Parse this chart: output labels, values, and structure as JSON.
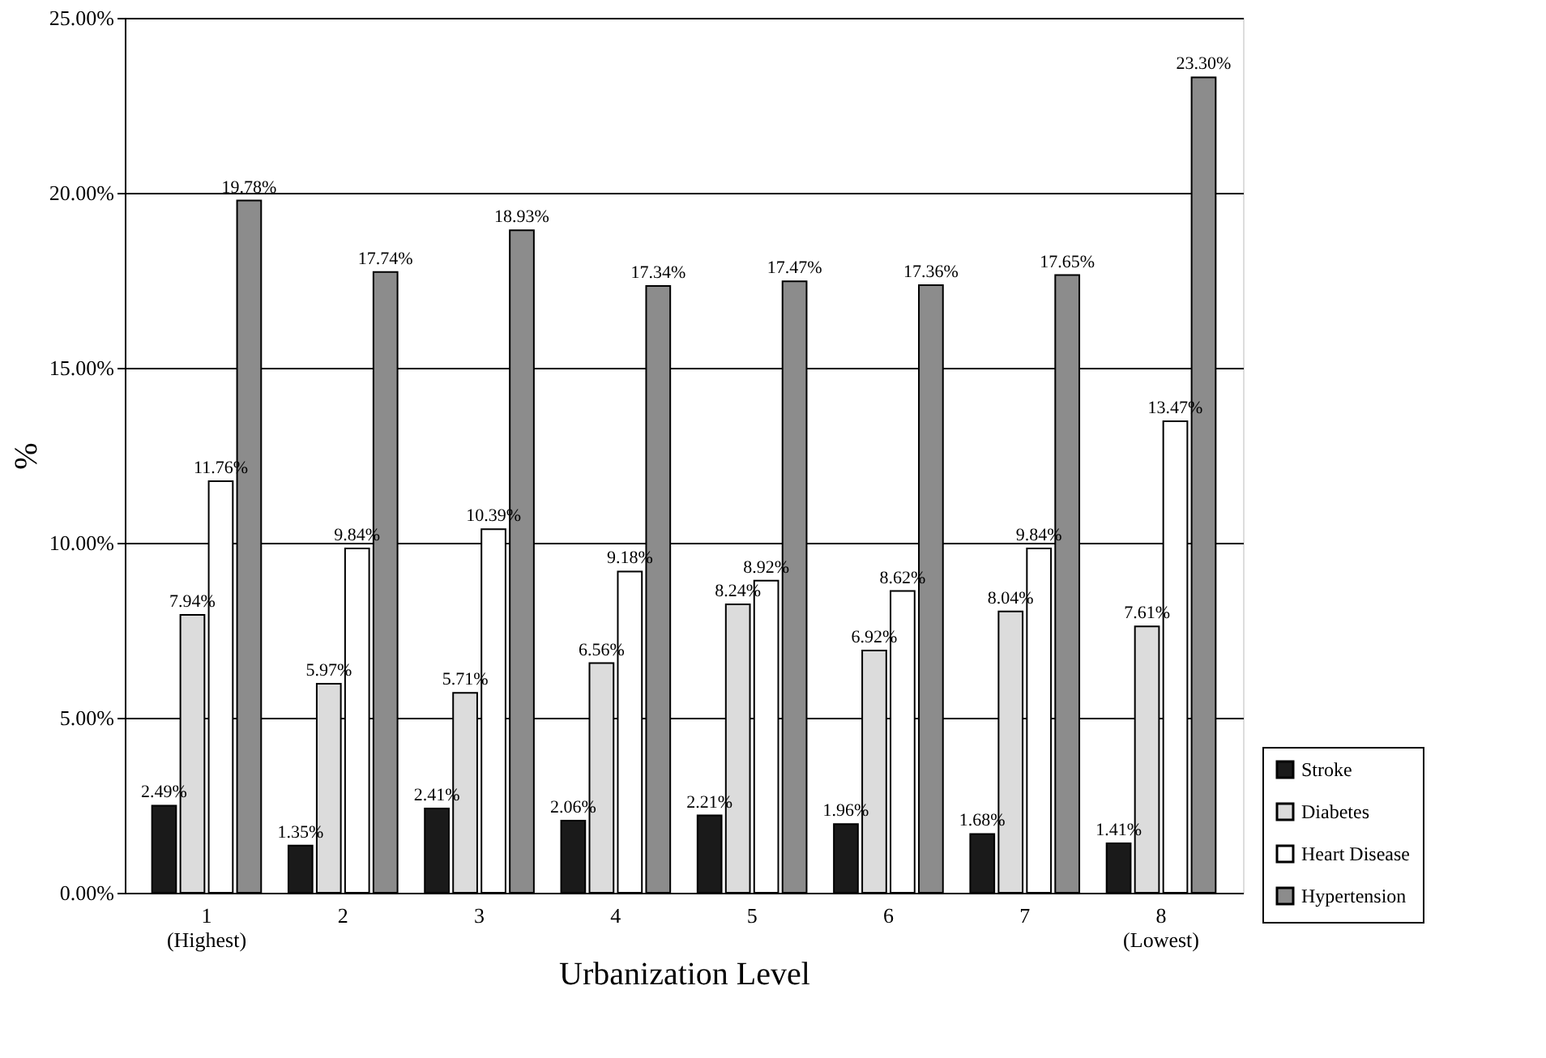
{
  "chart_data": {
    "type": "bar",
    "xlabel": "Urbanization Level",
    "ylabel": "%",
    "categories": [
      "1\n(Highest)",
      "2",
      "3",
      "4",
      "5",
      "6",
      "7",
      "8\n(Lowest)"
    ],
    "series": [
      {
        "name": "Stroke",
        "color": "#1a1a1a",
        "values": [
          2.49,
          1.35,
          2.41,
          2.06,
          2.21,
          1.96,
          1.68,
          1.41
        ],
        "value_labels": [
          "2.49%",
          "1.35%",
          "2.41%",
          "2.06%",
          "2.21%",
          "1.96%",
          "1.68%",
          "1.41%"
        ]
      },
      {
        "name": "Diabetes",
        "color": "#dcdcdc",
        "values": [
          7.94,
          5.97,
          5.71,
          6.56,
          8.24,
          6.92,
          8.04,
          7.61
        ],
        "value_labels": [
          "7.94%",
          "5.97%",
          "5.71%",
          "6.56%",
          "8.24%",
          "6.92%",
          "8.04%",
          "7.61%"
        ]
      },
      {
        "name": "Heart Disease",
        "color": "#ffffff",
        "values": [
          11.76,
          9.84,
          10.39,
          9.18,
          8.92,
          8.62,
          9.84,
          13.47
        ],
        "value_labels": [
          "11.76%",
          "9.84%",
          "10.39%",
          "9.18%",
          "8.92%",
          "8.62%",
          "9.84%",
          "13.47%"
        ]
      },
      {
        "name": "Hypertension",
        "color": "#8c8c8c",
        "values": [
          19.78,
          17.74,
          18.93,
          17.34,
          17.47,
          17.36,
          17.65,
          23.3
        ],
        "value_labels": [
          "19.78%",
          "17.74%",
          "18.93%",
          "17.34%",
          "17.47%",
          "17.36%",
          "17.65%",
          "23.30%"
        ]
      }
    ],
    "ylim": [
      0,
      25
    ],
    "yticks": [
      {
        "value": 0,
        "label": "0.00%"
      },
      {
        "value": 5,
        "label": "5.00%"
      },
      {
        "value": 10,
        "label": "10.00%"
      },
      {
        "value": 15,
        "label": "15.00%"
      },
      {
        "value": 20,
        "label": "20.00%"
      },
      {
        "value": 25,
        "label": "25.00%"
      }
    ],
    "grid": "y",
    "legend": "bottom right"
  }
}
